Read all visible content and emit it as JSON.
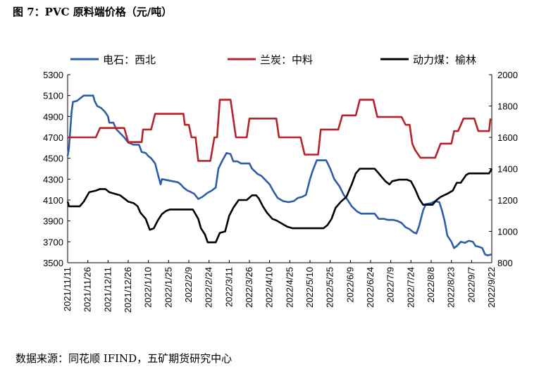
{
  "figure": {
    "title": "图 7：PVC 原料端价格（元/吨）",
    "source": "数据来源：同花顺 IFIND，五矿期货研究中心"
  },
  "chart_data": {
    "type": "line",
    "x_ticks": [
      "2021/11/11",
      "2021/11/26",
      "2021/12/11",
      "2021/12/26",
      "2022/1/10",
      "2022/1/25",
      "2022/2/9",
      "2022/2/24",
      "2022/3/11",
      "2022/3/26",
      "2022/4/10",
      "2022/4/25",
      "2022/5/10",
      "2022/5/25",
      "2022/6/9",
      "2022/6/24",
      "2022/7/9",
      "2022/7/24",
      "2022/8/8",
      "2022/8/23",
      "2022/9/7",
      "2022/9/22"
    ],
    "x_range": [
      "2021-11-11",
      "2022-09-22"
    ],
    "y_left": {
      "min": 3500,
      "max": 5300,
      "ticks": [
        3500,
        3700,
        3900,
        4100,
        4300,
        4500,
        4700,
        4900,
        5100,
        5300
      ]
    },
    "y_right": {
      "min": 800,
      "max": 2000,
      "ticks": [
        800,
        1000,
        1200,
        1400,
        1600,
        1800,
        2000
      ]
    },
    "legend_position": "top",
    "grid": false,
    "series": [
      {
        "name": "电石：西北",
        "axis": "left",
        "color": "#2e5da6",
        "points": [
          [
            "2021-11-11",
            4520
          ],
          [
            "2021-11-12",
            4600
          ],
          [
            "2021-11-14",
            4950
          ],
          [
            "2021-11-15",
            5040
          ],
          [
            "2021-11-18",
            5050
          ],
          [
            "2021-11-21",
            5080
          ],
          [
            "2021-11-23",
            5100
          ],
          [
            "2021-11-30",
            5100
          ],
          [
            "2021-12-01",
            5050
          ],
          [
            "2021-12-03",
            5000
          ],
          [
            "2021-12-06",
            4980
          ],
          [
            "2021-12-09",
            4940
          ],
          [
            "2021-12-11",
            4900
          ],
          [
            "2021-12-12",
            4840
          ],
          [
            "2021-12-15",
            4840
          ],
          [
            "2021-12-17",
            4780
          ],
          [
            "2021-12-20",
            4740
          ],
          [
            "2021-12-23",
            4700
          ],
          [
            "2021-12-26",
            4650
          ],
          [
            "2021-12-30",
            4630
          ],
          [
            "2022-01-03",
            4630
          ],
          [
            "2022-01-05",
            4560
          ],
          [
            "2022-01-08",
            4550
          ],
          [
            "2022-01-10",
            4520
          ],
          [
            "2022-01-12",
            4500
          ],
          [
            "2022-01-15",
            4450
          ],
          [
            "2022-01-17",
            4350
          ],
          [
            "2022-01-19",
            4250
          ],
          [
            "2022-01-20",
            4300
          ],
          [
            "2022-01-24",
            4290
          ],
          [
            "2022-01-28",
            4280
          ],
          [
            "2022-02-01",
            4270
          ],
          [
            "2022-02-03",
            4250
          ],
          [
            "2022-02-05",
            4220
          ],
          [
            "2022-02-08",
            4190
          ],
          [
            "2022-02-10",
            4180
          ],
          [
            "2022-02-13",
            4160
          ],
          [
            "2022-02-16",
            4110
          ],
          [
            "2022-02-19",
            4130
          ],
          [
            "2022-02-23",
            4170
          ],
          [
            "2022-02-26",
            4190
          ],
          [
            "2022-03-01",
            4220
          ],
          [
            "2022-03-03",
            4400
          ],
          [
            "2022-03-06",
            4480
          ],
          [
            "2022-03-09",
            4550
          ],
          [
            "2022-03-12",
            4540
          ],
          [
            "2022-03-14",
            4470
          ],
          [
            "2022-03-17",
            4470
          ],
          [
            "2022-03-20",
            4450
          ],
          [
            "2022-03-23",
            4450
          ],
          [
            "2022-03-26",
            4450
          ],
          [
            "2022-03-28",
            4400
          ],
          [
            "2022-04-01",
            4350
          ],
          [
            "2022-04-04",
            4330
          ],
          [
            "2022-04-07",
            4290
          ],
          [
            "2022-04-10",
            4250
          ],
          [
            "2022-04-13",
            4180
          ],
          [
            "2022-04-16",
            4120
          ],
          [
            "2022-04-20",
            4090
          ],
          [
            "2022-04-24",
            4080
          ],
          [
            "2022-04-28",
            4090
          ],
          [
            "2022-05-01",
            4120
          ],
          [
            "2022-05-04",
            4130
          ],
          [
            "2022-05-07",
            4150
          ],
          [
            "2022-05-10",
            4300
          ],
          [
            "2022-05-12",
            4380
          ],
          [
            "2022-05-15",
            4480
          ],
          [
            "2022-05-22",
            4480
          ],
          [
            "2022-05-25",
            4400
          ],
          [
            "2022-05-28",
            4300
          ],
          [
            "2022-06-01",
            4230
          ],
          [
            "2022-06-04",
            4150
          ],
          [
            "2022-06-07",
            4100
          ],
          [
            "2022-06-10",
            4040
          ],
          [
            "2022-06-14",
            3990
          ],
          [
            "2022-06-17",
            3970
          ],
          [
            "2022-06-24",
            3970
          ],
          [
            "2022-06-27",
            3970
          ],
          [
            "2022-06-30",
            3920
          ],
          [
            "2022-07-04",
            3920
          ],
          [
            "2022-07-07",
            3910
          ],
          [
            "2022-07-11",
            3910
          ],
          [
            "2022-07-14",
            3900
          ],
          [
            "2022-07-17",
            3880
          ],
          [
            "2022-07-20",
            3840
          ],
          [
            "2022-07-23",
            3820
          ],
          [
            "2022-07-26",
            3790
          ],
          [
            "2022-07-28",
            3780
          ],
          [
            "2022-07-30",
            3850
          ],
          [
            "2022-08-02",
            4000
          ],
          [
            "2022-08-04",
            4060
          ],
          [
            "2022-08-08",
            4070
          ],
          [
            "2022-08-11",
            4090
          ],
          [
            "2022-08-14",
            4080
          ],
          [
            "2022-08-16",
            4000
          ],
          [
            "2022-08-18",
            3900
          ],
          [
            "2022-08-20",
            3760
          ],
          [
            "2022-08-23",
            3700
          ],
          [
            "2022-08-25",
            3640
          ],
          [
            "2022-08-27",
            3660
          ],
          [
            "2022-08-30",
            3700
          ],
          [
            "2022-09-02",
            3690
          ],
          [
            "2022-09-05",
            3710
          ],
          [
            "2022-09-08",
            3700
          ],
          [
            "2022-09-10",
            3660
          ],
          [
            "2022-09-13",
            3650
          ],
          [
            "2022-09-15",
            3640
          ],
          [
            "2022-09-17",
            3580
          ],
          [
            "2022-09-19",
            3570
          ],
          [
            "2022-09-22",
            3580
          ]
        ]
      },
      {
        "name": "兰炭：中料",
        "axis": "right",
        "color": "#b5232b",
        "points": [
          [
            "2021-11-11",
            1600
          ],
          [
            "2021-11-29",
            1600
          ],
          [
            "2021-12-02",
            1600
          ],
          [
            "2021-12-05",
            1660
          ],
          [
            "2021-12-23",
            1660
          ],
          [
            "2021-12-26",
            1570
          ],
          [
            "2022-01-05",
            1570
          ],
          [
            "2022-01-06",
            1650
          ],
          [
            "2022-01-12",
            1650
          ],
          [
            "2022-01-15",
            1750
          ],
          [
            "2022-02-01",
            1750
          ],
          [
            "2022-02-05",
            1750
          ],
          [
            "2022-02-06",
            1680
          ],
          [
            "2022-02-09",
            1680
          ],
          [
            "2022-02-11",
            1600
          ],
          [
            "2022-02-14",
            1600
          ],
          [
            "2022-02-16",
            1450
          ],
          [
            "2022-02-25",
            1450
          ],
          [
            "2022-02-28",
            1600
          ],
          [
            "2022-03-02",
            1600
          ],
          [
            "2022-03-04",
            1840
          ],
          [
            "2022-03-12",
            1840
          ],
          [
            "2022-03-16",
            1600
          ],
          [
            "2022-03-24",
            1600
          ],
          [
            "2022-03-26",
            1720
          ],
          [
            "2022-04-15",
            1720
          ],
          [
            "2022-04-17",
            1600
          ],
          [
            "2022-05-03",
            1600
          ],
          [
            "2022-05-06",
            1490
          ],
          [
            "2022-05-16",
            1490
          ],
          [
            "2022-05-18",
            1650
          ],
          [
            "2022-05-31",
            1650
          ],
          [
            "2022-06-03",
            1740
          ],
          [
            "2022-06-13",
            1740
          ],
          [
            "2022-06-16",
            1840
          ],
          [
            "2022-06-26",
            1840
          ],
          [
            "2022-06-29",
            1730
          ],
          [
            "2022-07-17",
            1730
          ],
          [
            "2022-07-20",
            1680
          ],
          [
            "2022-07-23",
            1680
          ],
          [
            "2022-07-25",
            1560
          ],
          [
            "2022-07-27",
            1520
          ],
          [
            "2022-07-31",
            1470
          ],
          [
            "2022-08-11",
            1470
          ],
          [
            "2022-08-15",
            1560
          ],
          [
            "2022-08-23",
            1560
          ],
          [
            "2022-08-25",
            1640
          ],
          [
            "2022-08-28",
            1640
          ],
          [
            "2022-09-01",
            1720
          ],
          [
            "2022-09-09",
            1720
          ],
          [
            "2022-09-12",
            1640
          ],
          [
            "2022-09-20",
            1640
          ],
          [
            "2022-09-21",
            1720
          ]
        ]
      },
      {
        "name": "动力煤：榆林",
        "axis": "right",
        "color": "#000000",
        "points": [
          [
            "2021-11-11",
            1190
          ],
          [
            "2021-11-12",
            1160
          ],
          [
            "2021-11-20",
            1160
          ],
          [
            "2021-11-23",
            1190
          ],
          [
            "2021-11-27",
            1250
          ],
          [
            "2021-12-02",
            1260
          ],
          [
            "2021-12-05",
            1270
          ],
          [
            "2021-12-09",
            1270
          ],
          [
            "2021-12-12",
            1250
          ],
          [
            "2021-12-16",
            1240
          ],
          [
            "2021-12-20",
            1230
          ],
          [
            "2021-12-26",
            1190
          ],
          [
            "2021-12-30",
            1180
          ],
          [
            "2022-01-02",
            1160
          ],
          [
            "2022-01-04",
            1120
          ],
          [
            "2022-01-06",
            1100
          ],
          [
            "2022-01-08",
            1080
          ],
          [
            "2022-01-11",
            1010
          ],
          [
            "2022-01-14",
            1020
          ],
          [
            "2022-01-17",
            1070
          ],
          [
            "2022-01-20",
            1110
          ],
          [
            "2022-01-23",
            1130
          ],
          [
            "2022-01-26",
            1140
          ],
          [
            "2022-02-01",
            1140
          ],
          [
            "2022-02-07",
            1140
          ],
          [
            "2022-02-12",
            1140
          ],
          [
            "2022-02-16",
            1080
          ],
          [
            "2022-02-18",
            1020
          ],
          [
            "2022-02-21",
            980
          ],
          [
            "2022-02-23",
            930
          ],
          [
            "2022-03-01",
            930
          ],
          [
            "2022-03-04",
            990
          ],
          [
            "2022-03-08",
            1000
          ],
          [
            "2022-03-11",
            1100
          ],
          [
            "2022-03-14",
            1150
          ],
          [
            "2022-03-18",
            1200
          ],
          [
            "2022-03-24",
            1200
          ],
          [
            "2022-03-28",
            1230
          ],
          [
            "2022-03-31",
            1230
          ],
          [
            "2022-04-02",
            1210
          ],
          [
            "2022-04-05",
            1160
          ],
          [
            "2022-04-08",
            1120
          ],
          [
            "2022-04-12",
            1080
          ],
          [
            "2022-04-15",
            1070
          ],
          [
            "2022-04-19",
            1050
          ],
          [
            "2022-04-23",
            1030
          ],
          [
            "2022-04-27",
            1020
          ],
          [
            "2022-05-15",
            1020
          ],
          [
            "2022-05-20",
            1020
          ],
          [
            "2022-05-23",
            1040
          ],
          [
            "2022-05-26",
            1080
          ],
          [
            "2022-05-29",
            1150
          ],
          [
            "2022-06-02",
            1190
          ],
          [
            "2022-06-06",
            1220
          ],
          [
            "2022-06-10",
            1300
          ],
          [
            "2022-06-13",
            1370
          ],
          [
            "2022-06-16",
            1400
          ],
          [
            "2022-06-24",
            1400
          ],
          [
            "2022-06-27",
            1400
          ],
          [
            "2022-06-29",
            1380
          ],
          [
            "2022-07-02",
            1350
          ],
          [
            "2022-07-05",
            1320
          ],
          [
            "2022-07-08",
            1300
          ],
          [
            "2022-07-10",
            1320
          ],
          [
            "2022-07-15",
            1330
          ],
          [
            "2022-07-21",
            1330
          ],
          [
            "2022-07-24",
            1320
          ],
          [
            "2022-07-27",
            1270
          ],
          [
            "2022-07-30",
            1210
          ],
          [
            "2022-08-02",
            1170
          ],
          [
            "2022-08-09",
            1170
          ],
          [
            "2022-08-12",
            1200
          ],
          [
            "2022-08-15",
            1220
          ],
          [
            "2022-08-20",
            1240
          ],
          [
            "2022-08-24",
            1260
          ],
          [
            "2022-08-27",
            1310
          ],
          [
            "2022-08-30",
            1310
          ],
          [
            "2022-09-03",
            1360
          ],
          [
            "2022-09-05",
            1370
          ],
          [
            "2022-09-08",
            1370
          ],
          [
            "2022-09-12",
            1370
          ],
          [
            "2022-09-16",
            1370
          ],
          [
            "2022-09-20",
            1370
          ],
          [
            "2022-09-22",
            1400
          ]
        ]
      }
    ]
  }
}
